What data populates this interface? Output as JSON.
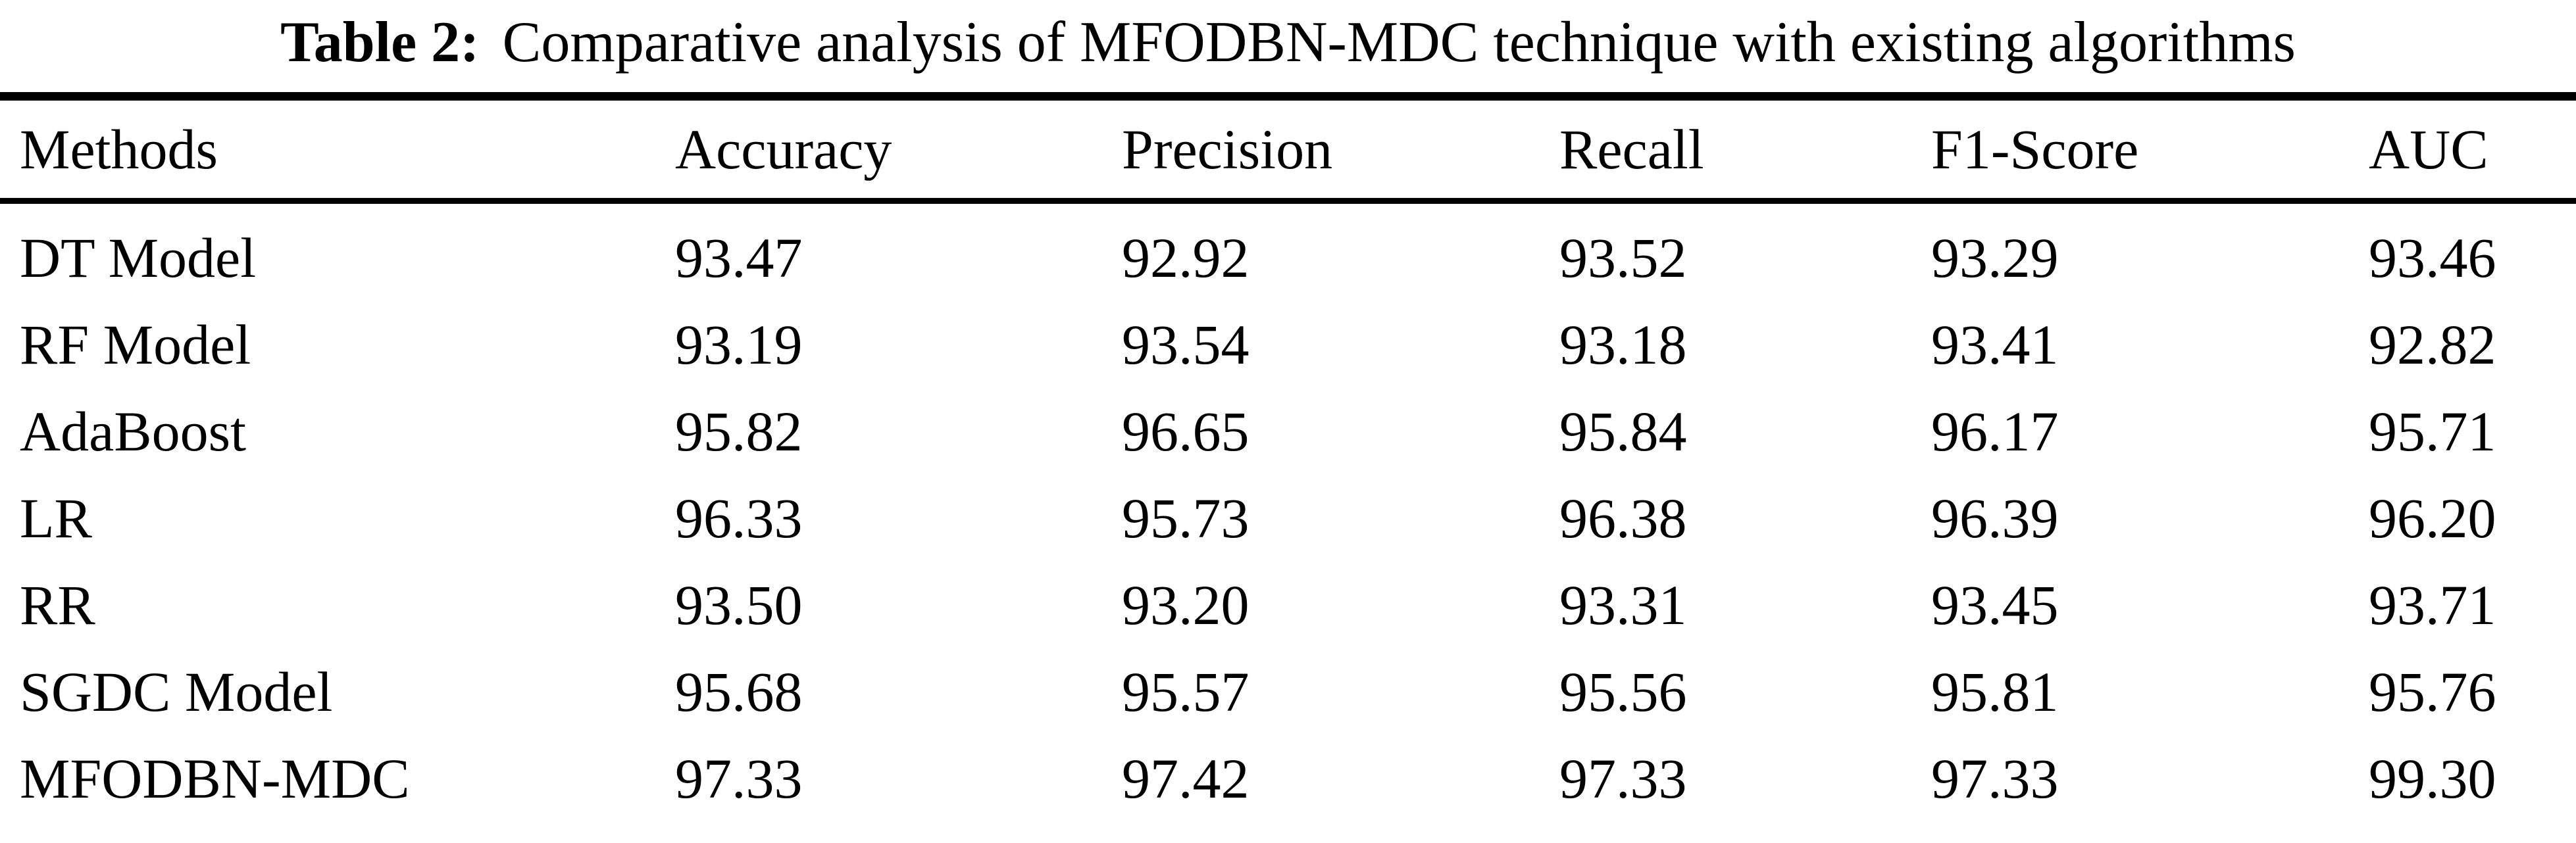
{
  "page": {
    "background": "#ffffff",
    "text_color": "#000000",
    "rule_color": "#000000"
  },
  "title": {
    "label": "Table 2:",
    "text": "Comparative analysis of MFODBN-MDC technique with existing algorithms"
  },
  "table": {
    "columns": [
      "Methods",
      "Accuracy",
      "Precision",
      "Recall",
      "F1-Score",
      "AUC"
    ],
    "rows": [
      {
        "method": "DT Model",
        "values": [
          "93.47",
          "92.92",
          "93.52",
          "93.29",
          "93.46"
        ]
      },
      {
        "method": "RF Model",
        "values": [
          "93.19",
          "93.54",
          "93.18",
          "93.41",
          "92.82"
        ]
      },
      {
        "method": "AdaBoost",
        "values": [
          "95.82",
          "96.65",
          "95.84",
          "96.17",
          "95.71"
        ]
      },
      {
        "method": "LR",
        "values": [
          "96.33",
          "95.73",
          "96.38",
          "96.39",
          "96.20"
        ]
      },
      {
        "method": "RR",
        "values": [
          "93.50",
          "93.20",
          "93.31",
          "93.45",
          "93.71"
        ]
      },
      {
        "method": "SGDC Model",
        "values": [
          "95.68",
          "95.57",
          "95.56",
          "95.81",
          "95.76"
        ]
      },
      {
        "method": "MFODBN-MDC",
        "values": [
          "97.33",
          "97.42",
          "97.33",
          "97.33",
          "99.30"
        ]
      }
    ]
  }
}
